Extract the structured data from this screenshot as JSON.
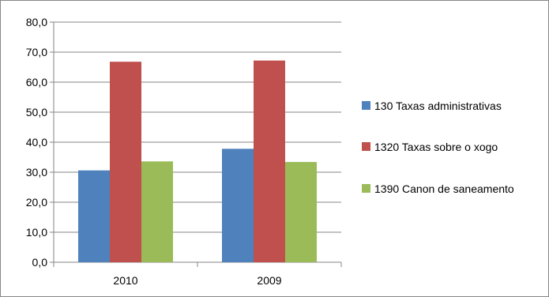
{
  "chart_data": {
    "type": "bar",
    "categories": [
      "2010",
      "2009"
    ],
    "series": [
      {
        "name": "130 Taxas administrativas",
        "color": "#4F81BD",
        "values": [
          30.6,
          37.8
        ]
      },
      {
        "name": "1320 Taxas sobre o xogo",
        "color": "#C0504D",
        "values": [
          66.8,
          67.2
        ]
      },
      {
        "name": "1390 Canon de saneamento",
        "color": "#9BBB59",
        "values": [
          33.6,
          33.4
        ]
      }
    ],
    "y_ticks": [
      "0,0",
      "10,0",
      "20,0",
      "30,0",
      "40,0",
      "50,0",
      "60,0",
      "70,0",
      "80,0"
    ],
    "ylim": [
      0,
      80
    ],
    "y_step": 10,
    "grid": true,
    "legend_position": "right"
  }
}
